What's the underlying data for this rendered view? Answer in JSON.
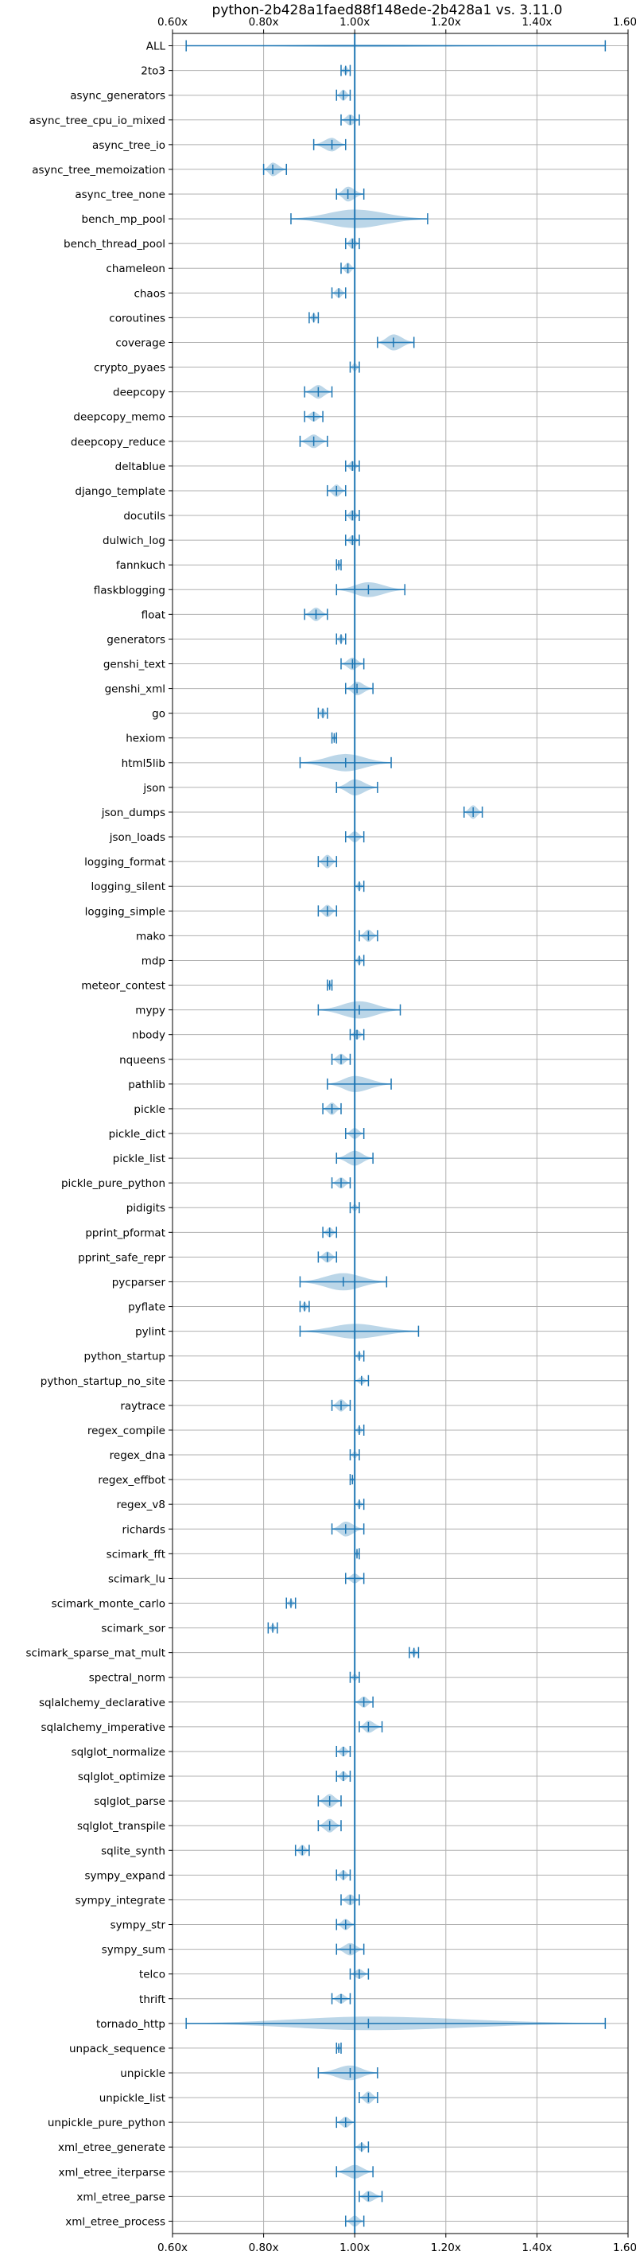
{
  "chart_data": {
    "type": "violin",
    "orientation": "horizontal",
    "title": "python-2b428a1faed88f148ede-2b428a1 vs. 3.11.0",
    "xlabel": "",
    "ylabel": "",
    "xlim": [
      0.6,
      1.6
    ],
    "xticks": [
      0.6,
      0.8,
      1.0,
      1.2,
      1.4,
      1.6
    ],
    "xtick_labels": [
      "0.60x",
      "0.80x",
      "1.00x",
      "1.20x",
      "1.40x",
      "1.60x"
    ],
    "reference_line": 1.0,
    "grid": true,
    "colors": {
      "primary": "#1f77b4",
      "violin_fill": "#1f77b4",
      "grid": "#b0b0b0"
    },
    "categories": [
      "ALL",
      "2to3",
      "async_generators",
      "async_tree_cpu_io_mixed",
      "async_tree_io",
      "async_tree_memoization",
      "async_tree_none",
      "bench_mp_pool",
      "bench_thread_pool",
      "chameleon",
      "chaos",
      "coroutines",
      "coverage",
      "crypto_pyaes",
      "deepcopy",
      "deepcopy_memo",
      "deepcopy_reduce",
      "deltablue",
      "django_template",
      "docutils",
      "dulwich_log",
      "fannkuch",
      "flaskblogging",
      "float",
      "generators",
      "genshi_text",
      "genshi_xml",
      "go",
      "hexiom",
      "html5lib",
      "json",
      "json_dumps",
      "json_loads",
      "logging_format",
      "logging_silent",
      "logging_simple",
      "mako",
      "mdp",
      "meteor_contest",
      "mypy",
      "nbody",
      "nqueens",
      "pathlib",
      "pickle",
      "pickle_dict",
      "pickle_list",
      "pickle_pure_python",
      "pidigits",
      "pprint_pformat",
      "pprint_safe_repr",
      "pycparser",
      "pyflate",
      "pylint",
      "python_startup",
      "python_startup_no_site",
      "raytrace",
      "regex_compile",
      "regex_dna",
      "regex_effbot",
      "regex_v8",
      "richards",
      "scimark_fft",
      "scimark_lu",
      "scimark_monte_carlo",
      "scimark_sor",
      "scimark_sparse_mat_mult",
      "spectral_norm",
      "sqlalchemy_declarative",
      "sqlalchemy_imperative",
      "sqlglot_normalize",
      "sqlglot_optimize",
      "sqlglot_parse",
      "sqlglot_transpile",
      "sqlite_synth",
      "sympy_expand",
      "sympy_integrate",
      "sympy_str",
      "sympy_sum",
      "telco",
      "thrift",
      "tornado_http",
      "unpack_sequence",
      "unpickle",
      "unpickle_list",
      "unpickle_pure_python",
      "xml_etree_generate",
      "xml_etree_iterparse",
      "xml_etree_parse",
      "xml_etree_process"
    ],
    "series": [
      {
        "values": [
          {
            "min": 0.63,
            "max": 1.55,
            "median": 1.0,
            "width": 0.1
          },
          {
            "min": 0.97,
            "max": 0.99,
            "median": 0.98,
            "width": 0.35
          },
          {
            "min": 0.96,
            "max": 0.99,
            "median": 0.975,
            "width": 0.45
          },
          {
            "min": 0.97,
            "max": 1.01,
            "median": 0.99,
            "width": 0.45
          },
          {
            "min": 0.91,
            "max": 0.98,
            "median": 0.95,
            "width": 0.55
          },
          {
            "min": 0.8,
            "max": 0.85,
            "median": 0.82,
            "width": 0.55
          },
          {
            "min": 0.96,
            "max": 1.02,
            "median": 0.985,
            "width": 0.6
          },
          {
            "min": 0.86,
            "max": 1.16,
            "median": 1.0,
            "width": 0.75
          },
          {
            "min": 0.98,
            "max": 1.01,
            "median": 0.995,
            "width": 0.45
          },
          {
            "min": 0.97,
            "max": 1.0,
            "median": 0.985,
            "width": 0.45
          },
          {
            "min": 0.95,
            "max": 0.98,
            "median": 0.965,
            "width": 0.4
          },
          {
            "min": 0.9,
            "max": 0.92,
            "median": 0.91,
            "width": 0.35
          },
          {
            "min": 1.05,
            "max": 1.13,
            "median": 1.085,
            "width": 0.65
          },
          {
            "min": 0.99,
            "max": 1.01,
            "median": 1.0,
            "width": 0.35
          },
          {
            "min": 0.89,
            "max": 0.95,
            "median": 0.92,
            "width": 0.55
          },
          {
            "min": 0.89,
            "max": 0.93,
            "median": 0.91,
            "width": 0.4
          },
          {
            "min": 0.88,
            "max": 0.94,
            "median": 0.91,
            "width": 0.55
          },
          {
            "min": 0.98,
            "max": 1.01,
            "median": 0.995,
            "width": 0.4
          },
          {
            "min": 0.94,
            "max": 0.98,
            "median": 0.96,
            "width": 0.5
          },
          {
            "min": 0.98,
            "max": 1.01,
            "median": 0.995,
            "width": 0.45
          },
          {
            "min": 0.98,
            "max": 1.01,
            "median": 0.995,
            "width": 0.4
          },
          {
            "min": 0.96,
            "max": 0.97,
            "median": 0.965,
            "width": 0.3
          },
          {
            "min": 0.96,
            "max": 1.11,
            "median": 1.03,
            "width": 0.6
          },
          {
            "min": 0.89,
            "max": 0.94,
            "median": 0.915,
            "width": 0.55
          },
          {
            "min": 0.96,
            "max": 0.98,
            "median": 0.97,
            "width": 0.35
          },
          {
            "min": 0.97,
            "max": 1.02,
            "median": 0.995,
            "width": 0.5
          },
          {
            "min": 0.98,
            "max": 1.04,
            "median": 1.005,
            "width": 0.55
          },
          {
            "min": 0.92,
            "max": 0.94,
            "median": 0.93,
            "width": 0.4
          },
          {
            "min": 0.95,
            "max": 0.96,
            "median": 0.955,
            "width": 0.3
          },
          {
            "min": 0.88,
            "max": 1.08,
            "median": 0.98,
            "width": 0.7
          },
          {
            "min": 0.96,
            "max": 1.05,
            "median": 1.0,
            "width": 0.65
          },
          {
            "min": 1.24,
            "max": 1.28,
            "median": 1.26,
            "width": 0.55
          },
          {
            "min": 0.98,
            "max": 1.02,
            "median": 1.0,
            "width": 0.45
          },
          {
            "min": 0.92,
            "max": 0.96,
            "median": 0.94,
            "width": 0.55
          },
          {
            "min": 1.0,
            "max": 1.02,
            "median": 1.01,
            "width": 0.35
          },
          {
            "min": 0.92,
            "max": 0.96,
            "median": 0.94,
            "width": 0.5
          },
          {
            "min": 1.01,
            "max": 1.05,
            "median": 1.03,
            "width": 0.5
          },
          {
            "min": 1.0,
            "max": 1.02,
            "median": 1.01,
            "width": 0.35
          },
          {
            "min": 0.94,
            "max": 0.95,
            "median": 0.945,
            "width": 0.3
          },
          {
            "min": 0.92,
            "max": 1.1,
            "median": 1.01,
            "width": 0.7
          },
          {
            "min": 0.99,
            "max": 1.02,
            "median": 1.005,
            "width": 0.4
          },
          {
            "min": 0.95,
            "max": 0.99,
            "median": 0.97,
            "width": 0.45
          },
          {
            "min": 0.94,
            "max": 1.08,
            "median": 1.0,
            "width": 0.65
          },
          {
            "min": 0.93,
            "max": 0.97,
            "median": 0.95,
            "width": 0.5
          },
          {
            "min": 0.98,
            "max": 1.02,
            "median": 1.0,
            "width": 0.45
          },
          {
            "min": 0.96,
            "max": 1.04,
            "median": 1.0,
            "width": 0.6
          },
          {
            "min": 0.95,
            "max": 0.99,
            "median": 0.97,
            "width": 0.45
          },
          {
            "min": 0.99,
            "max": 1.01,
            "median": 1.0,
            "width": 0.3
          },
          {
            "min": 0.93,
            "max": 0.96,
            "median": 0.945,
            "width": 0.4
          },
          {
            "min": 0.92,
            "max": 0.96,
            "median": 0.94,
            "width": 0.45
          },
          {
            "min": 0.88,
            "max": 1.07,
            "median": 0.975,
            "width": 0.7
          },
          {
            "min": 0.88,
            "max": 0.9,
            "median": 0.89,
            "width": 0.35
          },
          {
            "min": 0.88,
            "max": 1.14,
            "median": 1.0,
            "width": 0.6
          },
          {
            "min": 1.0,
            "max": 1.02,
            "median": 1.01,
            "width": 0.3
          },
          {
            "min": 1.0,
            "max": 1.03,
            "median": 1.015,
            "width": 0.3
          },
          {
            "min": 0.95,
            "max": 0.99,
            "median": 0.97,
            "width": 0.5
          },
          {
            "min": 1.0,
            "max": 1.02,
            "median": 1.01,
            "width": 0.3
          },
          {
            "min": 0.99,
            "max": 1.01,
            "median": 1.0,
            "width": 0.3
          },
          {
            "min": 0.99,
            "max": 1.0,
            "median": 0.995,
            "width": 0.2
          },
          {
            "min": 1.0,
            "max": 1.02,
            "median": 1.01,
            "width": 0.3
          },
          {
            "min": 0.95,
            "max": 1.02,
            "median": 0.98,
            "width": 0.6
          },
          {
            "min": 1.0,
            "max": 1.01,
            "median": 1.005,
            "width": 0.3
          },
          {
            "min": 0.98,
            "max": 1.02,
            "median": 1.0,
            "width": 0.4
          },
          {
            "min": 0.85,
            "max": 0.87,
            "median": 0.86,
            "width": 0.3
          },
          {
            "min": 0.81,
            "max": 0.83,
            "median": 0.82,
            "width": 0.3
          },
          {
            "min": 1.12,
            "max": 1.14,
            "median": 1.13,
            "width": 0.3
          },
          {
            "min": 0.99,
            "max": 1.01,
            "median": 1.0,
            "width": 0.3
          },
          {
            "min": 1.0,
            "max": 1.04,
            "median": 1.02,
            "width": 0.45
          },
          {
            "min": 1.01,
            "max": 1.06,
            "median": 1.03,
            "width": 0.5
          },
          {
            "min": 0.96,
            "max": 0.99,
            "median": 0.975,
            "width": 0.4
          },
          {
            "min": 0.96,
            "max": 0.99,
            "median": 0.975,
            "width": 0.4
          },
          {
            "min": 0.92,
            "max": 0.97,
            "median": 0.945,
            "width": 0.55
          },
          {
            "min": 0.92,
            "max": 0.97,
            "median": 0.945,
            "width": 0.55
          },
          {
            "min": 0.87,
            "max": 0.9,
            "median": 0.885,
            "width": 0.45
          },
          {
            "min": 0.96,
            "max": 0.99,
            "median": 0.975,
            "width": 0.4
          },
          {
            "min": 0.97,
            "max": 1.01,
            "median": 0.99,
            "width": 0.45
          },
          {
            "min": 0.96,
            "max": 1.0,
            "median": 0.98,
            "width": 0.45
          },
          {
            "min": 0.96,
            "max": 1.02,
            "median": 0.99,
            "width": 0.5
          },
          {
            "min": 0.99,
            "max": 1.03,
            "median": 1.01,
            "width": 0.4
          },
          {
            "min": 0.95,
            "max": 0.99,
            "median": 0.97,
            "width": 0.4
          },
          {
            "min": 0.63,
            "max": 1.55,
            "median": 1.03,
            "width": 0.55
          },
          {
            "min": 0.96,
            "max": 0.97,
            "median": 0.965,
            "width": 0.3
          },
          {
            "min": 0.92,
            "max": 1.05,
            "median": 0.99,
            "width": 0.6
          },
          {
            "min": 1.01,
            "max": 1.05,
            "median": 1.03,
            "width": 0.5
          },
          {
            "min": 0.96,
            "max": 1.0,
            "median": 0.98,
            "width": 0.45
          },
          {
            "min": 1.0,
            "max": 1.03,
            "median": 1.015,
            "width": 0.35
          },
          {
            "min": 0.96,
            "max": 1.04,
            "median": 1.0,
            "width": 0.55
          },
          {
            "min": 1.01,
            "max": 1.06,
            "median": 1.03,
            "width": 0.45
          },
          {
            "min": 0.98,
            "max": 1.02,
            "median": 1.0,
            "width": 0.45
          }
        ]
      }
    ]
  }
}
